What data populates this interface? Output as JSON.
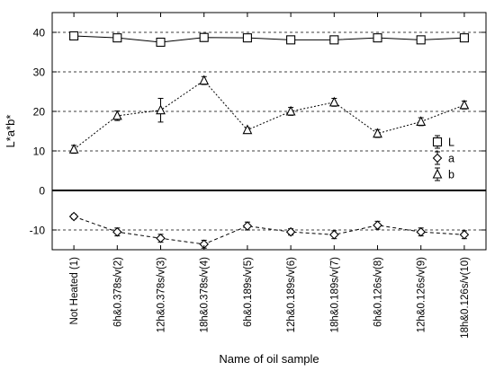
{
  "chart_data": {
    "type": "line",
    "xlabel": "Name of oil sample",
    "ylabel": "L*a*b*",
    "categories": [
      "Not Heated (1)",
      "6h&0.378s/v(2)",
      "12h&0.378s/v(3)",
      "18h&0.378s/v(4)",
      "6h&0.189s/v(5)",
      "12h&0.189s/v(6)",
      "18h&0.189s/v(7)",
      "6h&0.126s/v(8)",
      "12h&0.126s/v(9)",
      "18h&0.126s/v(10)"
    ],
    "ylim": [
      -15,
      45
    ],
    "yticks": [
      -10,
      0,
      10,
      20,
      30,
      40
    ],
    "grid": "horizontal dashed",
    "legend_position": "right",
    "series": [
      {
        "name": "L",
        "marker": "square",
        "line": "solid",
        "values": [
          39.1,
          38.6,
          37.5,
          38.7,
          38.6,
          38.1,
          38.1,
          38.6,
          38.1,
          38.6
        ],
        "errors": [
          1.0,
          0.8,
          1.0,
          1.0,
          0.8,
          0.7,
          0.7,
          0.8,
          0.8,
          0.8
        ]
      },
      {
        "name": "a",
        "marker": "diamond",
        "line": "dashed",
        "values": [
          -6.6,
          -10.5,
          -12.1,
          -13.6,
          -9.0,
          -10.5,
          -11.2,
          -8.8,
          -10.5,
          -11.2
        ],
        "errors": [
          0.6,
          1.0,
          1.0,
          1.0,
          1.0,
          0.8,
          1.0,
          1.0,
          1.0,
          1.0
        ]
      },
      {
        "name": "b",
        "marker": "triangle",
        "line": "dotted",
        "values": [
          10.4,
          18.9,
          20.3,
          27.8,
          15.3,
          20.0,
          22.3,
          14.4,
          17.4,
          21.6
        ],
        "errors": [
          1.0,
          1.2,
          3.0,
          1.0,
          0.6,
          1.0,
          1.0,
          1.0,
          1.0,
          1.0
        ]
      }
    ]
  }
}
